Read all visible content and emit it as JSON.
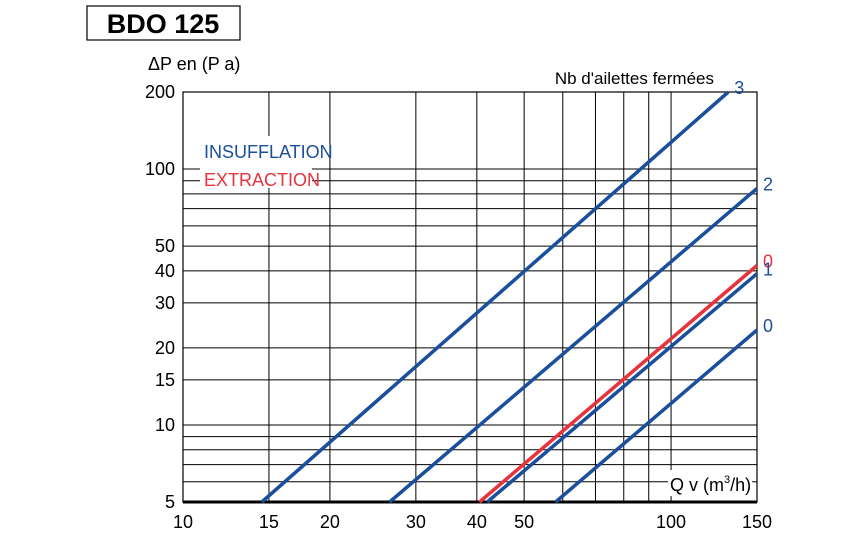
{
  "chart_data": {
    "type": "line",
    "title": "BDO 125",
    "ylabel": "ΔP en (P a)",
    "xlabel": "Q v (m³/h)",
    "xscale": "log",
    "yscale": "log",
    "xlim": [
      10,
      150
    ],
    "ylim": [
      5,
      200
    ],
    "grid": true,
    "x_ticks": [
      10,
      15,
      20,
      30,
      40,
      50,
      100,
      150
    ],
    "y_ticks": [
      5,
      10,
      15,
      20,
      30,
      40,
      50,
      100,
      200
    ],
    "legend_title": "Nb d'ailettes fermées",
    "legend": [
      {
        "label": "INSUFFLATION",
        "color": "#1a4f9c"
      },
      {
        "label": "EXTRACTION",
        "color": "#e8323c"
      }
    ],
    "series": [
      {
        "mode": "INSUFFLATION",
        "name": "3",
        "color": "#1a4f9c",
        "x": [
          14.5,
          131
        ],
        "y": [
          5,
          200
        ]
      },
      {
        "mode": "INSUFFLATION",
        "name": "2",
        "color": "#1a4f9c",
        "x": [
          26.5,
          150
        ],
        "y": [
          5,
          84
        ]
      },
      {
        "mode": "EXTRACTION",
        "name": "0",
        "color": "#e8323c",
        "x": [
          40.5,
          150
        ],
        "y": [
          5,
          42
        ]
      },
      {
        "mode": "INSUFFLATION",
        "name": "1",
        "color": "#1a4f9c",
        "x": [
          42,
          150
        ],
        "y": [
          5,
          39
        ]
      },
      {
        "mode": "INSUFFLATION",
        "name": "0",
        "color": "#1a4f9c",
        "x": [
          58,
          150
        ],
        "y": [
          5,
          23.5
        ]
      }
    ]
  }
}
